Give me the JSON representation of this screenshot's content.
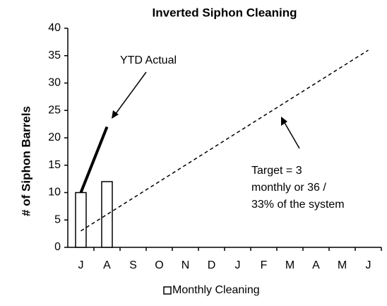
{
  "chart_data": {
    "type": "bar",
    "title": "Inverted Siphon Cleaning",
    "y_label": "# of Siphon Barrels",
    "categories": [
      "J",
      "A",
      "S",
      "O",
      "N",
      "D",
      "J",
      "F",
      "M",
      "A",
      "M",
      "J"
    ],
    "series": [
      {
        "name": "Monthly Cleaning",
        "type": "bar",
        "color": "#000000",
        "values": [
          10,
          12,
          null,
          null,
          null,
          null,
          null,
          null,
          null,
          null,
          null,
          null
        ]
      },
      {
        "name": "YTD Actual",
        "type": "line",
        "color": "#000000",
        "values": [
          10,
          22,
          null,
          null,
          null,
          null,
          null,
          null,
          null,
          null,
          null,
          null
        ]
      },
      {
        "type": "line",
        "dashed": true,
        "color": "#000000",
        "values": [
          3,
          6,
          9,
          12,
          15,
          18,
          21,
          24,
          27,
          30,
          33,
          36
        ]
      }
    ],
    "ylim": [
      0,
      40
    ],
    "yticks": [
      0,
      5,
      10,
      15,
      20,
      25,
      30,
      35,
      40
    ],
    "grid": false,
    "legend": {
      "series": [
        0
      ],
      "position": "bottom"
    },
    "annotations": [
      {
        "lines": [
          "Target = 3",
          "monthly or 36 /",
          "33% of the system"
        ]
      }
    ]
  }
}
